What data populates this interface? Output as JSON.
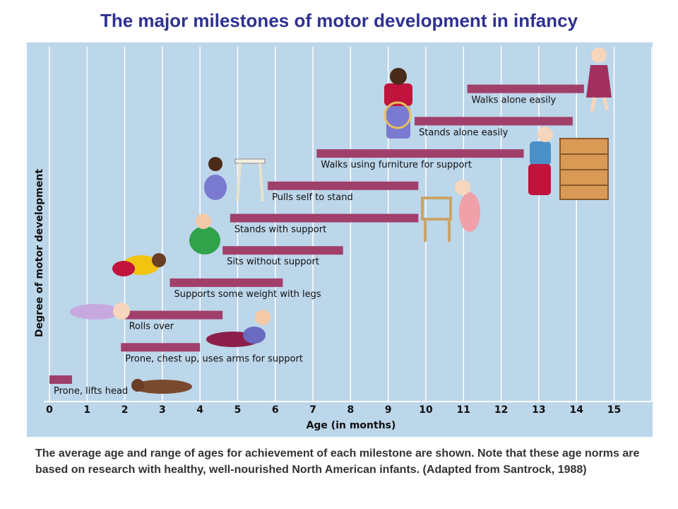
{
  "title": "The major milestones of motor development in infancy",
  "caption": "The average age and range of ages for achievement of each milestone are shown. Note that these age norms are based on research with healthy, well-nourished North American infants. (Adapted from Santrock, 1988)",
  "colors": {
    "panel": "#bcd6ea",
    "bar": "#a13f6b",
    "grid": "#ffffff",
    "title": "#2e3192"
  },
  "chart_data": {
    "type": "bar",
    "orientation": "horizontal-range",
    "xlabel": "Age (in months)",
    "ylabel": "Degree of motor development",
    "xlim": [
      0,
      16
    ],
    "xticks": [
      "0",
      "1",
      "2",
      "3",
      "4",
      "5",
      "6",
      "7",
      "8",
      "9",
      "10",
      "11",
      "12",
      "13",
      "14",
      "15"
    ],
    "grid": true,
    "milestones": [
      {
        "label": "Prone, lifts head",
        "start": 0.0,
        "end": 0.6
      },
      {
        "label": "Prone, chest up, uses arms for support",
        "start": 1.9,
        "end": 4.0
      },
      {
        "label": "Rolls over",
        "start": 2.0,
        "end": 4.6
      },
      {
        "label": "Supports some weight with legs",
        "start": 3.2,
        "end": 6.2
      },
      {
        "label": "Sits without support",
        "start": 4.6,
        "end": 7.8
      },
      {
        "label": "Stands with support",
        "start": 4.8,
        "end": 9.8
      },
      {
        "label": "Pulls self to stand",
        "start": 5.8,
        "end": 9.8
      },
      {
        "label": "Walks using furniture for support",
        "start": 7.1,
        "end": 12.6
      },
      {
        "label": "Stands alone easily",
        "start": 9.7,
        "end": 13.9
      },
      {
        "label": "Walks alone easily",
        "start": 11.1,
        "end": 14.2
      }
    ]
  }
}
